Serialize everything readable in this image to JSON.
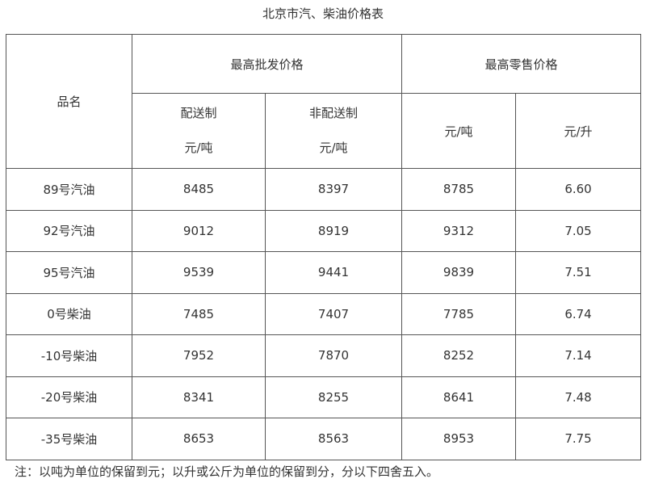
{
  "title": "北京市汽、柴油价格表",
  "header": {
    "product": "品名",
    "wholesale": "最高批发价格",
    "retail": "最高零售价格",
    "sub": [
      {
        "line1": "配送制",
        "line2": "元/吨"
      },
      {
        "line1": "非配送制",
        "line2": "元/吨"
      },
      {
        "line1": "元/吨"
      },
      {
        "line1": "元/升"
      }
    ]
  },
  "rows": [
    {
      "name": "89号汽油",
      "values": [
        "8485",
        "8397",
        "8785",
        "6.60"
      ]
    },
    {
      "name": "92号汽油",
      "values": [
        "9012",
        "8919",
        "9312",
        "7.05"
      ]
    },
    {
      "name": "95号汽油",
      "values": [
        "9539",
        "9441",
        "9839",
        "7.51"
      ]
    },
    {
      "name": "0号柴油",
      "values": [
        "7485",
        "7407",
        "7785",
        "6.74"
      ]
    },
    {
      "name": "-10号柴油",
      "values": [
        "7952",
        "7870",
        "8252",
        "7.14"
      ]
    },
    {
      "name": "-20号柴油",
      "values": [
        "8341",
        "8255",
        "8641",
        "7.48"
      ]
    },
    {
      "name": "-35号柴油",
      "values": [
        "8653",
        "8563",
        "8953",
        "7.75"
      ]
    }
  ],
  "note": "注：以吨为单位的保留到元；以升或公斤为单位的保留到分，分以下四舍五入。"
}
